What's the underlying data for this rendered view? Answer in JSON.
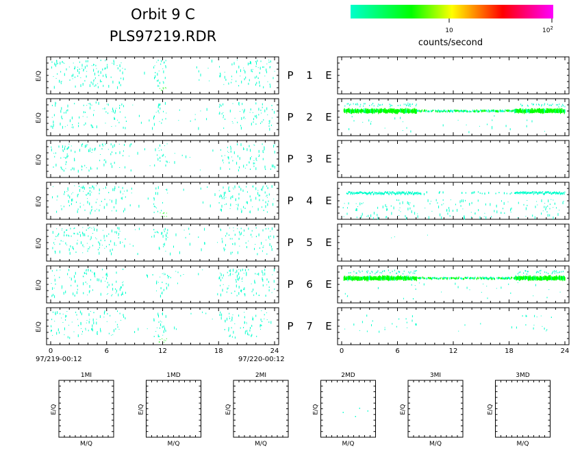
{
  "title_line1": "Orbit 9 C",
  "title_line2": "PLS97219.RDR",
  "colorbar": {
    "label": "counts/second",
    "tick_10": "10",
    "tick_100_base": "10",
    "tick_100_exp": "2",
    "colors": [
      "#00ffcc",
      "#00ff00",
      "#ffff00",
      "#ff0000",
      "#ff00ff"
    ]
  },
  "panel_ylabel": "E/Q",
  "mq_label": "M/Q",
  "rows": [
    {
      "p": "P",
      "n": "1",
      "e": "E"
    },
    {
      "p": "P",
      "n": "2",
      "e": "E"
    },
    {
      "p": "P",
      "n": "3",
      "e": "E"
    },
    {
      "p": "P",
      "n": "4",
      "e": "E"
    },
    {
      "p": "P",
      "n": "5",
      "e": "E"
    },
    {
      "p": "P",
      "n": "6",
      "e": "E"
    },
    {
      "p": "P",
      "n": "7",
      "e": "E"
    }
  ],
  "x_ticks": [
    "0",
    "6",
    "12",
    "18",
    "24"
  ],
  "date_start": "97/219-00:12",
  "date_end": "97/220-00:12",
  "mass_panels": [
    "1MI",
    "1MD",
    "2MI",
    "2MD",
    "3MI",
    "3MD"
  ],
  "chart_data": {
    "type": "heatmap",
    "x_range_hours": [
      0,
      24
    ],
    "grid": false,
    "left_panels_activity": "scattered cyan counts in all 7 P rows, concentrated 0-8 h and 18-24 h",
    "right_panels_bands": [
      {
        "row": 2,
        "band": "continuous green/cyan band across 0-24 h"
      },
      {
        "row": 4,
        "band": "cyan band 0.5-8.5 h and 18.5-24 h"
      },
      {
        "row": 6,
        "band": "continuous green/cyan band across 0-24 h"
      }
    ]
  }
}
